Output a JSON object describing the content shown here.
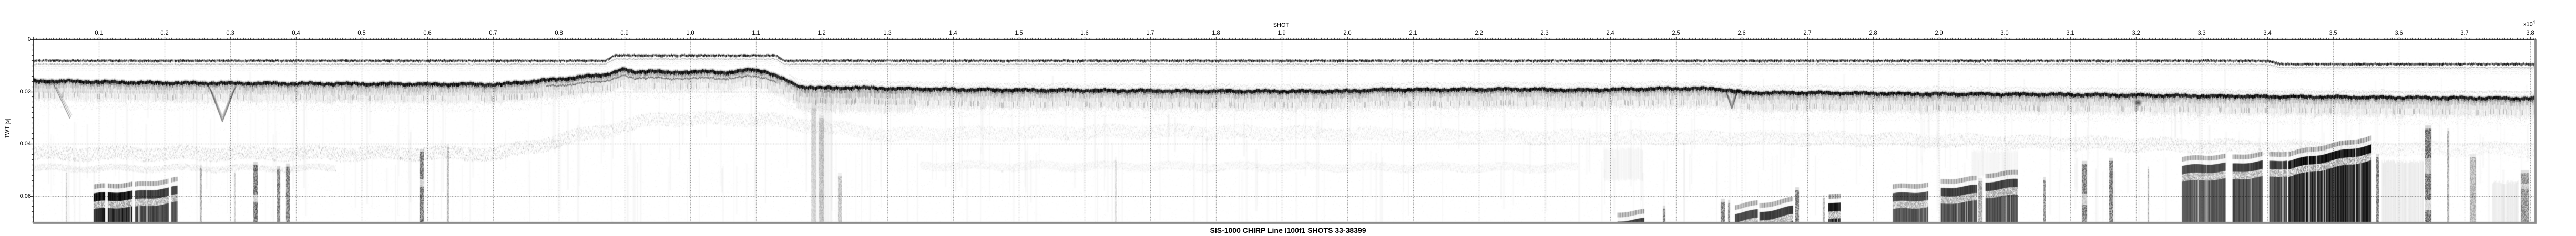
{
  "figure": {
    "caption": "SIS-1000 CHIRP Line l100f1 SHOTS 33-38399",
    "x_axis": {
      "title": "SHOT",
      "exponent_base": "x10",
      "exponent_sup": "4",
      "tick_labels": [
        "0.1",
        "0.2",
        "0.3",
        "0.4",
        "0.5",
        "0.6",
        "0.7",
        "0.8",
        "0.9",
        "1.0",
        "1.1",
        "1.2",
        "1.3",
        "1.4",
        "1.5",
        "1.6",
        "1.7",
        "1.8",
        "1.9",
        "2.0",
        "2.1",
        "2.2",
        "2.3",
        "2.4",
        "2.5",
        "2.6",
        "2.7",
        "2.8",
        "2.9",
        "3.0",
        "3.1",
        "3.2",
        "3.3",
        "3.4",
        "3.5",
        "3.6",
        "3.7",
        "3.8"
      ],
      "tick_values": [
        0.1,
        0.2,
        0.3,
        0.4,
        0.5,
        0.6,
        0.7,
        0.8,
        0.9,
        1.0,
        1.1,
        1.2,
        1.3,
        1.4,
        1.5,
        1.6,
        1.7,
        1.8,
        1.9,
        2.0,
        2.1,
        2.2,
        2.3,
        2.4,
        2.5,
        2.6,
        2.7,
        2.8,
        2.9,
        3.0,
        3.1,
        3.2,
        3.3,
        3.4,
        3.5,
        3.6,
        3.7,
        3.8
      ]
    },
    "y_axis": {
      "title": "TWT [s]",
      "tick_labels": [
        "0",
        "0.02",
        "0.04",
        "0.06"
      ],
      "tick_values": [
        0,
        0.02,
        0.04,
        0.06
      ]
    },
    "colors": {
      "ink": "#000000",
      "background": "#ffffff",
      "border_gray": "#8c8c8c"
    }
  },
  "chart_data": {
    "type": "heatmap",
    "title": "SIS-1000 CHIRP Line l100f1 SHOTS 33-38399",
    "xlabel": "SHOT",
    "x_scale_exponent": "x10^4",
    "xlim": [
      0,
      3.809
    ],
    "x_ticks": [
      0.1,
      0.2,
      0.3,
      0.4,
      0.5,
      0.6,
      0.7,
      0.8,
      0.9,
      1.0,
      1.1,
      1.2,
      1.3,
      1.4,
      1.5,
      1.6,
      1.7,
      1.8,
      1.9,
      2.0,
      2.1,
      2.2,
      2.3,
      2.4,
      2.5,
      2.6,
      2.7,
      2.8,
      2.9,
      3.0,
      3.1,
      3.2,
      3.3,
      3.4,
      3.5,
      3.6,
      3.7,
      3.8
    ],
    "ylabel": "TWT [s]",
    "ylim": [
      0.0706,
      0
    ],
    "y_ticks": [
      0,
      0.02,
      0.04,
      0.06
    ],
    "grid": "dotted, at every 0.1 x-major and 0.02 y-major",
    "shot_range_shown": [
      33,
      38399
    ],
    "direct_arrival_twt": [
      [
        0,
        0.0078
      ],
      [
        0.87,
        0.0078
      ],
      [
        0.885,
        0.0058
      ],
      [
        1.13,
        0.0058
      ],
      [
        1.143,
        0.0078
      ],
      [
        3.4,
        0.0078
      ],
      [
        3.42,
        0.0091
      ],
      [
        3.809,
        0.0091
      ]
    ],
    "seafloor_twt": [
      [
        0,
        0.0153
      ],
      [
        0.19,
        0.0161
      ],
      [
        0.51,
        0.0165
      ],
      [
        0.71,
        0.0167
      ],
      [
        0.75,
        0.0157
      ],
      [
        0.814,
        0.0143
      ],
      [
        0.87,
        0.0129
      ],
      [
        0.898,
        0.0109
      ],
      [
        0.914,
        0.0121
      ],
      [
        0.942,
        0.0113
      ],
      [
        0.966,
        0.0123
      ],
      [
        1.006,
        0.0117
      ],
      [
        1.054,
        0.0121
      ],
      [
        1.094,
        0.0111
      ],
      [
        1.114,
        0.0117
      ],
      [
        1.13,
        0.0133
      ],
      [
        1.15,
        0.0157
      ],
      [
        1.166,
        0.0175
      ],
      [
        1.198,
        0.0181
      ],
      [
        1.246,
        0.0179
      ],
      [
        1.31,
        0.0183
      ],
      [
        1.43,
        0.0187
      ],
      [
        1.55,
        0.0189
      ],
      [
        1.67,
        0.0191
      ],
      [
        1.83,
        0.0193
      ],
      [
        1.99,
        0.0193
      ],
      [
        2.046,
        0.0187
      ],
      [
        2.15,
        0.0187
      ],
      [
        2.27,
        0.0185
      ],
      [
        2.35,
        0.0189
      ],
      [
        2.43,
        0.0185
      ],
      [
        2.494,
        0.0183
      ],
      [
        2.558,
        0.0183
      ],
      [
        2.582,
        0.0189
      ],
      [
        2.602,
        0.0199
      ],
      [
        2.71,
        0.0199
      ],
      [
        2.87,
        0.0203
      ],
      [
        3.07,
        0.0205
      ],
      [
        3.23,
        0.0209
      ],
      [
        3.39,
        0.0213
      ],
      [
        3.59,
        0.0217
      ],
      [
        3.809,
        0.0221
      ]
    ],
    "subbottom_reflectors": [
      {
        "pts": [
          [
            0,
            0.0435
          ],
          [
            0.71,
            0.0435
          ],
          [
            0.95,
            0.0302
          ],
          [
            1.1,
            0.0302
          ],
          [
            1.3,
            0.0363
          ],
          [
            1.7,
            0.035
          ],
          [
            2.3,
            0.0372
          ],
          [
            2.7,
            0.0377
          ],
          [
            3.1,
            0.0396
          ],
          [
            3.5,
            0.0416
          ],
          [
            3.809,
            0.042
          ]
        ],
        "spread": 13,
        "strength": [
          [
            0,
            1.0
          ],
          [
            0.71,
            1.0
          ],
          [
            0.9,
            0.7
          ],
          [
            1.15,
            0.7
          ],
          [
            1.3,
            0.5
          ],
          [
            1.7,
            0.55
          ],
          [
            2.3,
            0.5
          ],
          [
            2.9,
            0.7
          ],
          [
            3.3,
            0.8
          ],
          [
            3.6,
            0.5
          ],
          [
            3.809,
            0.45
          ]
        ]
      },
      {
        "pts": [
          [
            0,
            0.0492
          ],
          [
            0.46,
            0.0492
          ]
        ],
        "spread": 6,
        "strength": [
          [
            0,
            0.5
          ],
          [
            0.46,
            0.5
          ]
        ]
      },
      {
        "pts": [
          [
            1.35,
            0.0482
          ],
          [
            2.35,
            0.049
          ]
        ],
        "spread": 8,
        "strength": [
          [
            1.35,
            0.4
          ],
          [
            2.35,
            0.4
          ]
        ]
      }
    ],
    "deep_masses": [
      {
        "v0": 0.092,
        "v1": 0.151,
        "t0": 0.0557,
        "t1": 0.0547,
        "slits": [
          [
            0.1096,
            0.1128
          ]
        ]
      },
      {
        "v0": 0.155,
        "v1": 0.206,
        "t0": 0.0549,
        "t1": 0.0535
      },
      {
        "v0": 0.21,
        "v1": 0.219,
        "t0": 0.0533,
        "t1": 0.0529
      },
      {
        "v0": 2.411,
        "v1": 2.451,
        "t0": 0.0663,
        "t1": 0.0653
      },
      {
        "v0": 2.59,
        "v1": 2.624,
        "t0": 0.0633,
        "t1": 0.0619
      },
      {
        "v0": 2.627,
        "v1": 2.678,
        "t0": 0.0629,
        "t1": 0.0605
      },
      {
        "v0": 2.732,
        "v1": 2.75,
        "t0": 0.0597,
        "t1": 0.0589
      },
      {
        "v0": 2.83,
        "v1": 2.883,
        "t0": 0.0557,
        "t1": 0.0549
      },
      {
        "v0": 2.903,
        "v1": 2.958,
        "t0": 0.0537,
        "t1": 0.0525
      },
      {
        "v0": 2.971,
        "v1": 3.019,
        "t0": 0.0513,
        "t1": 0.0501
      },
      {
        "v0": 3.27,
        "v1": 3.336,
        "t0": 0.045,
        "t1": 0.044
      },
      {
        "v0": 3.347,
        "v1": 3.392,
        "t0": 0.0444,
        "t1": 0.0432
      },
      {
        "v0": 3.403,
        "v1": 3.43,
        "t0": 0.0434,
        "t1": 0.0428
      },
      {
        "v0": 3.432,
        "v1": 3.558,
        "t0": 0.043,
        "t1": 0.037
      }
    ],
    "noise_columns": [
      {
        "v": 0.0496,
        "w": 3,
        "t": 0.0512,
        "s": 0.3
      },
      {
        "v": 0.2536,
        "w": 4,
        "t": 0.0492,
        "s": 0.5
      },
      {
        "v": 0.3056,
        "w": 3,
        "t": 0.0512,
        "s": 0.3
      },
      {
        "v": 0.3352,
        "w": 8,
        "t": 0.0482,
        "s": 0.95,
        "gaps": [
          [
            0.0593,
            0.0619,
            0.3
          ]
        ]
      },
      {
        "v": 0.3712,
        "w": 6,
        "t": 0.0497,
        "s": 0.85
      },
      {
        "v": 0.3848,
        "w": 7,
        "t": 0.0488,
        "s": 0.9
      },
      {
        "v": 0.588,
        "w": 8,
        "t": 0.0432,
        "s": 0.9,
        "gaps": [
          [
            0.0533,
            0.0563,
            0.35
          ]
        ]
      },
      {
        "v": 0.6296,
        "w": 4,
        "t": 0.0412,
        "s": 0.45
      },
      {
        "v": 1.184,
        "w": 9,
        "t": 0.0262,
        "s": 0.25
      },
      {
        "v": 1.196,
        "w": 10,
        "t": 0.0302,
        "s": 0.35
      },
      {
        "v": 1.2248,
        "w": 7,
        "t": 0.0523,
        "s": 0.4
      },
      {
        "v": 1.6456,
        "w": 4,
        "t": 0.0462,
        "s": 0.22
      },
      {
        "v": 2.48,
        "w": 5,
        "t": 0.0649,
        "s": 0.8
      },
      {
        "v": 2.568,
        "w": 8,
        "t": 0.0623,
        "s": 0.85
      },
      {
        "v": 2.5792,
        "w": 4,
        "t": 0.0627,
        "s": 0.75
      },
      {
        "v": 2.6816,
        "w": 7,
        "t": 0.0579,
        "s": 0.9
      },
      {
        "v": 2.7232,
        "w": 4,
        "t": 0.0609,
        "s": 0.5
      },
      {
        "v": 2.96,
        "w": 8,
        "t": 0.0543,
        "s": 0.6
      },
      {
        "v": 3.0592,
        "w": 4,
        "t": 0.0539,
        "s": 0.8
      },
      {
        "v": 3.1176,
        "w": 10,
        "t": 0.0478,
        "s": 0.85,
        "gaps": [
          [
            0.0589,
            0.0633,
            0.4
          ]
        ]
      },
      {
        "v": 3.1592,
        "w": 7,
        "t": 0.0466,
        "s": 0.9
      },
      {
        "v": 3.2176,
        "w": 3,
        "t": 0.0499,
        "s": 0.5
      },
      {
        "v": 3.5656,
        "w": 5,
        "t": 0.0452,
        "s": 0.9
      },
      {
        "v": 3.64,
        "w": 12,
        "t": 0.0342,
        "s": 0.95,
        "gaps": [
          [
            0.0452,
            0.0512,
            0.5
          ],
          [
            0.0613,
            0.0653,
            0.3
          ]
        ]
      },
      {
        "v": 3.6736,
        "w": 4,
        "t": 0.0352,
        "s": 0.55
      },
      {
        "v": 3.708,
        "w": 12,
        "t": 0.0452,
        "s": 0.5
      },
      {
        "v": 3.7856,
        "w": 16,
        "t": 0.0513,
        "s": 0.75,
        "gaps": [
          [
            0.0553,
            0.0573,
            0.5
          ]
        ]
      }
    ],
    "washes": [
      {
        "v0": 1.186,
        "v1": 1.216,
        "t0": 0.02,
        "t1": 0.07,
        "a": 0.06
      },
      {
        "v0": 3.574,
        "v1": 3.638,
        "t0": 0.046,
        "t1": 0.07,
        "a": 0.1
      },
      {
        "v0": 3.742,
        "v1": 3.782,
        "t0": 0.054,
        "t1": 0.07,
        "a": 0.1
      },
      {
        "v0": 2.39,
        "v1": 2.45,
        "t0": 0.041,
        "t1": 0.053,
        "a": 0.05
      },
      {
        "v0": 2.95,
        "v1": 3.02,
        "t0": 0.042,
        "t1": 0.052,
        "a": 0.05
      }
    ],
    "incisions": [
      {
        "type": "diag",
        "v0": 0.032,
        "t0": 0.0177,
        "v1": 0.056,
        "t1": 0.0303
      },
      {
        "type": "v",
        "vL": 0.268,
        "vR": 0.308,
        "tRim": 0.0183,
        "tApex": 0.0316
      },
      {
        "type": "v",
        "vL": 2.576,
        "vR": 2.594,
        "tRim": 0.0201,
        "tApex": 0.0267
      }
    ],
    "smudges": [
      {
        "v": 3.203,
        "t": 0.0243,
        "rx": 10,
        "ry": 8,
        "a": 0.4
      }
    ]
  }
}
